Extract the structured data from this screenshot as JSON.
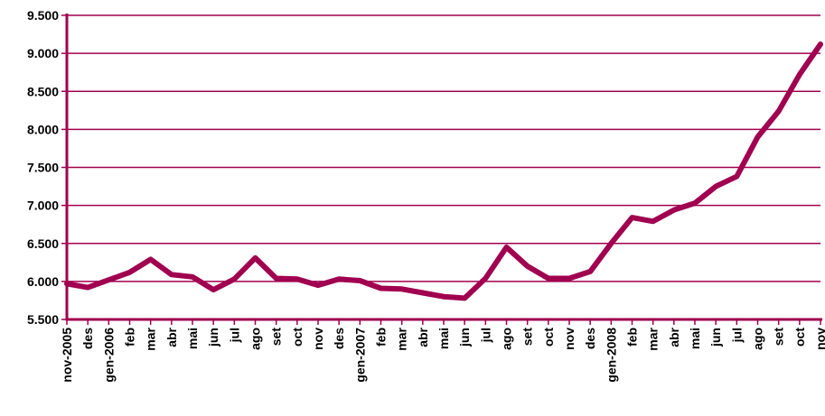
{
  "chart_data": {
    "type": "line",
    "categories": [
      "nov-2005",
      "des",
      "gen-2006",
      "feb",
      "mar",
      "abr",
      "mai",
      "jun",
      "jul",
      "ago",
      "set",
      "oct",
      "nov",
      "des",
      "gen-2007",
      "feb",
      "mar",
      "abr",
      "mai",
      "jun",
      "jul",
      "ago",
      "set",
      "oct",
      "nov",
      "des",
      "gen-2008",
      "feb",
      "mar",
      "abr",
      "mai",
      "jun",
      "jul",
      "ago",
      "set",
      "oct",
      "nov"
    ],
    "series": [
      {
        "values": [
          5970,
          5920,
          6020,
          6120,
          6290,
          6090,
          6060,
          5890,
          6030,
          6310,
          6040,
          6030,
          5950,
          6030,
          6010,
          5910,
          5900,
          5850,
          5800,
          5780,
          6040,
          6450,
          6200,
          6040,
          6040,
          6130,
          6500,
          6840,
          6790,
          6940,
          7030,
          7250,
          7380,
          7900,
          8240,
          8720,
          9120
        ],
        "color": "#a0004f"
      }
    ],
    "yticks": [
      "5.500",
      "6.000",
      "6.500",
      "7.000",
      "7.500",
      "8.000",
      "8.500",
      "9.000",
      "9.500"
    ],
    "ylim": [
      5500,
      9500
    ],
    "grid": true,
    "colors": {
      "line": "#a0004f",
      "axis": "#a0004f",
      "grid": "#a0004f",
      "background": "#ffffff"
    }
  }
}
